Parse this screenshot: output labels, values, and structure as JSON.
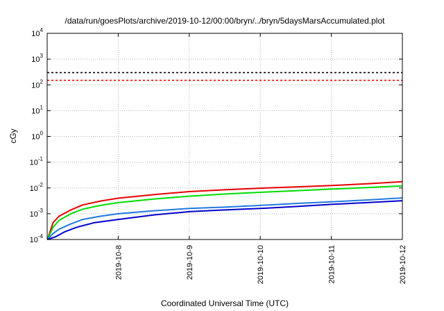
{
  "chart_data": {
    "type": "line",
    "title": "/data/run/goesPlots/archive/2019-10-12/00:00/bryn/../bryn/5daysMarsAccumulated.plot",
    "xlabel": "Coordinated Universal Time (UTC)",
    "ylabel": "cGy",
    "yscale": "log",
    "ylim": [
      0.0001,
      10000
    ],
    "xlim": [
      "2019-10-07T00:00",
      "2019-10-12T00:00"
    ],
    "grid": true,
    "xticks": [
      "2019-10-8",
      "2019-10-9",
      "2019-10-10",
      "2019-10-11",
      "2019-10-12"
    ],
    "yticks": [
      {
        "base": "10",
        "exp": "-4",
        "value": 0.0001
      },
      {
        "base": "10",
        "exp": "-3",
        "value": 0.001
      },
      {
        "base": "10",
        "exp": "-2",
        "value": 0.01
      },
      {
        "base": "10",
        "exp": "-1",
        "value": 0.1
      },
      {
        "base": "10",
        "exp": "0",
        "value": 1
      },
      {
        "base": "10",
        "exp": "1",
        "value": 10
      },
      {
        "base": "10",
        "exp": "2",
        "value": 100
      },
      {
        "base": "10",
        "exp": "3",
        "value": 1000
      },
      {
        "base": "10",
        "exp": "4",
        "value": 10000
      }
    ],
    "reference_lines": [
      {
        "color": "#000000",
        "value": 300
      },
      {
        "color": "#ff0000",
        "value": 150
      }
    ],
    "series": [
      {
        "color": "#e60000",
        "points": [
          [
            "2019-10-07T00:05",
            0.0001
          ],
          [
            "2019-10-07T02:00",
            0.00045
          ],
          [
            "2019-10-07T04:00",
            0.0008
          ],
          [
            "2019-10-07T08:00",
            0.0014
          ],
          [
            "2019-10-07T12:00",
            0.0022
          ],
          [
            "2019-10-07T18:00",
            0.0031
          ],
          [
            "2019-10-08T00:00",
            0.004
          ],
          [
            "2019-10-08T12:00",
            0.0055
          ],
          [
            "2019-10-09T00:00",
            0.0072
          ],
          [
            "2019-10-09T12:00",
            0.0085
          ],
          [
            "2019-10-10T00:00",
            0.0098
          ],
          [
            "2019-10-10T12:00",
            0.011
          ],
          [
            "2019-10-11T00:00",
            0.0125
          ],
          [
            "2019-10-11T12:00",
            0.0145
          ],
          [
            "2019-10-12T00:00",
            0.0175
          ]
        ]
      },
      {
        "color": "#00dd00",
        "points": [
          [
            "2019-10-07T00:05",
            0.0001
          ],
          [
            "2019-10-07T02:00",
            0.0003
          ],
          [
            "2019-10-07T04:00",
            0.00055
          ],
          [
            "2019-10-07T08:00",
            0.001
          ],
          [
            "2019-10-07T12:00",
            0.0015
          ],
          [
            "2019-10-07T18:00",
            0.0021
          ],
          [
            "2019-10-08T00:00",
            0.0027
          ],
          [
            "2019-10-08T12:00",
            0.0037
          ],
          [
            "2019-10-09T00:00",
            0.0048
          ],
          [
            "2019-10-09T12:00",
            0.0058
          ],
          [
            "2019-10-10T00:00",
            0.0068
          ],
          [
            "2019-10-10T12:00",
            0.0078
          ],
          [
            "2019-10-11T00:00",
            0.009
          ],
          [
            "2019-10-11T12:00",
            0.0103
          ],
          [
            "2019-10-12T00:00",
            0.012
          ]
        ]
      },
      {
        "color": "#1f78e0",
        "points": [
          [
            "2019-10-07T00:05",
            0.0001
          ],
          [
            "2019-10-07T02:00",
            0.00017
          ],
          [
            "2019-10-07T04:00",
            0.00025
          ],
          [
            "2019-10-07T08:00",
            0.0004
          ],
          [
            "2019-10-07T12:00",
            0.0006
          ],
          [
            "2019-10-07T18:00",
            0.0008
          ],
          [
            "2019-10-08T00:00",
            0.001
          ],
          [
            "2019-10-08T12:00",
            0.0013
          ],
          [
            "2019-10-09T00:00",
            0.0016
          ],
          [
            "2019-10-09T12:00",
            0.0018
          ],
          [
            "2019-10-10T00:00",
            0.0021
          ],
          [
            "2019-10-10T12:00",
            0.0025
          ],
          [
            "2019-10-11T00:00",
            0.0029
          ],
          [
            "2019-10-11T12:00",
            0.0034
          ],
          [
            "2019-10-12T00:00",
            0.0041
          ]
        ]
      },
      {
        "color": "#0000cc",
        "points": [
          [
            "2019-10-07T00:05",
            0.0001
          ],
          [
            "2019-10-07T03:00",
            0.00013
          ],
          [
            "2019-10-07T06:00",
            0.0002
          ],
          [
            "2019-10-07T10:00",
            0.0003
          ],
          [
            "2019-10-07T16:00",
            0.00045
          ],
          [
            "2019-10-08T00:00",
            0.0006
          ],
          [
            "2019-10-08T12:00",
            0.0009
          ],
          [
            "2019-10-09T00:00",
            0.0012
          ],
          [
            "2019-10-09T12:00",
            0.0014
          ],
          [
            "2019-10-10T00:00",
            0.0016
          ],
          [
            "2019-10-10T12:00",
            0.0019
          ],
          [
            "2019-10-11T00:00",
            0.0023
          ],
          [
            "2019-10-11T12:00",
            0.0027
          ],
          [
            "2019-10-12T00:00",
            0.0032
          ]
        ]
      }
    ]
  }
}
